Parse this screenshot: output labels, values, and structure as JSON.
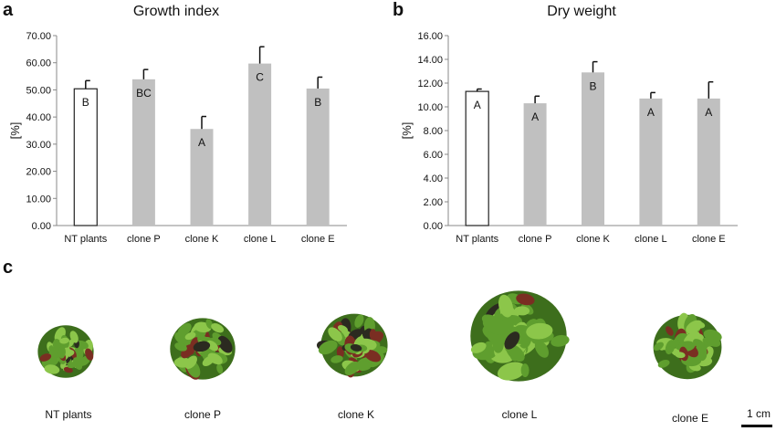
{
  "panels": {
    "a": "a",
    "b": "b",
    "c": "c"
  },
  "chart_data": [
    {
      "type": "bar",
      "title": "Growth index",
      "ylabel": "[%]",
      "xlabel": "",
      "ylim": [
        0,
        70
      ],
      "yticks": [
        "0.00",
        "10.00",
        "20.00",
        "30.00",
        "40.00",
        "50.00",
        "60.00",
        "70.00"
      ],
      "categories": [
        "NT plants",
        "clone P",
        "clone K",
        "clone L",
        "clone E"
      ],
      "values": [
        50.4,
        53.9,
        35.6,
        59.7,
        50.5
      ],
      "errors": [
        3.0,
        3.6,
        4.6,
        6.2,
        4.2
      ],
      "letters": [
        "B",
        "BC",
        "A",
        "C",
        "B"
      ],
      "bar_colors": [
        "#ffffff",
        "#c0c0c0",
        "#c0c0c0",
        "#c0c0c0",
        "#c0c0c0"
      ],
      "grid": false
    },
    {
      "type": "bar",
      "title": "Dry weight",
      "ylabel": "[%]",
      "xlabel": "",
      "ylim": [
        0,
        16
      ],
      "yticks": [
        "0.00",
        "2.00",
        "4.00",
        "6.00",
        "8.00",
        "10.00",
        "12.00",
        "14.00",
        "16.00"
      ],
      "categories": [
        "NT plants",
        "clone P",
        "clone K",
        "clone L",
        "clone E"
      ],
      "values": [
        11.3,
        10.3,
        12.9,
        10.7,
        10.7
      ],
      "errors": [
        0.2,
        0.6,
        0.9,
        0.5,
        1.4
      ],
      "letters": [
        "A",
        "A",
        "B",
        "A",
        "A"
      ],
      "bar_colors": [
        "#ffffff",
        "#c0c0c0",
        "#c0c0c0",
        "#c0c0c0",
        "#c0c0c0"
      ],
      "grid": false
    }
  ],
  "photos": {
    "labels": [
      "NT plants",
      "clone P",
      "clone K",
      "clone L",
      "clone E"
    ],
    "scale": "1 cm",
    "colors": {
      "leaf": "#5f9e2e",
      "leaf_light": "#8cc64a",
      "leaf_dark": "#3d6e1c",
      "red": "#7a2e22",
      "dark": "#2b2a20"
    }
  }
}
